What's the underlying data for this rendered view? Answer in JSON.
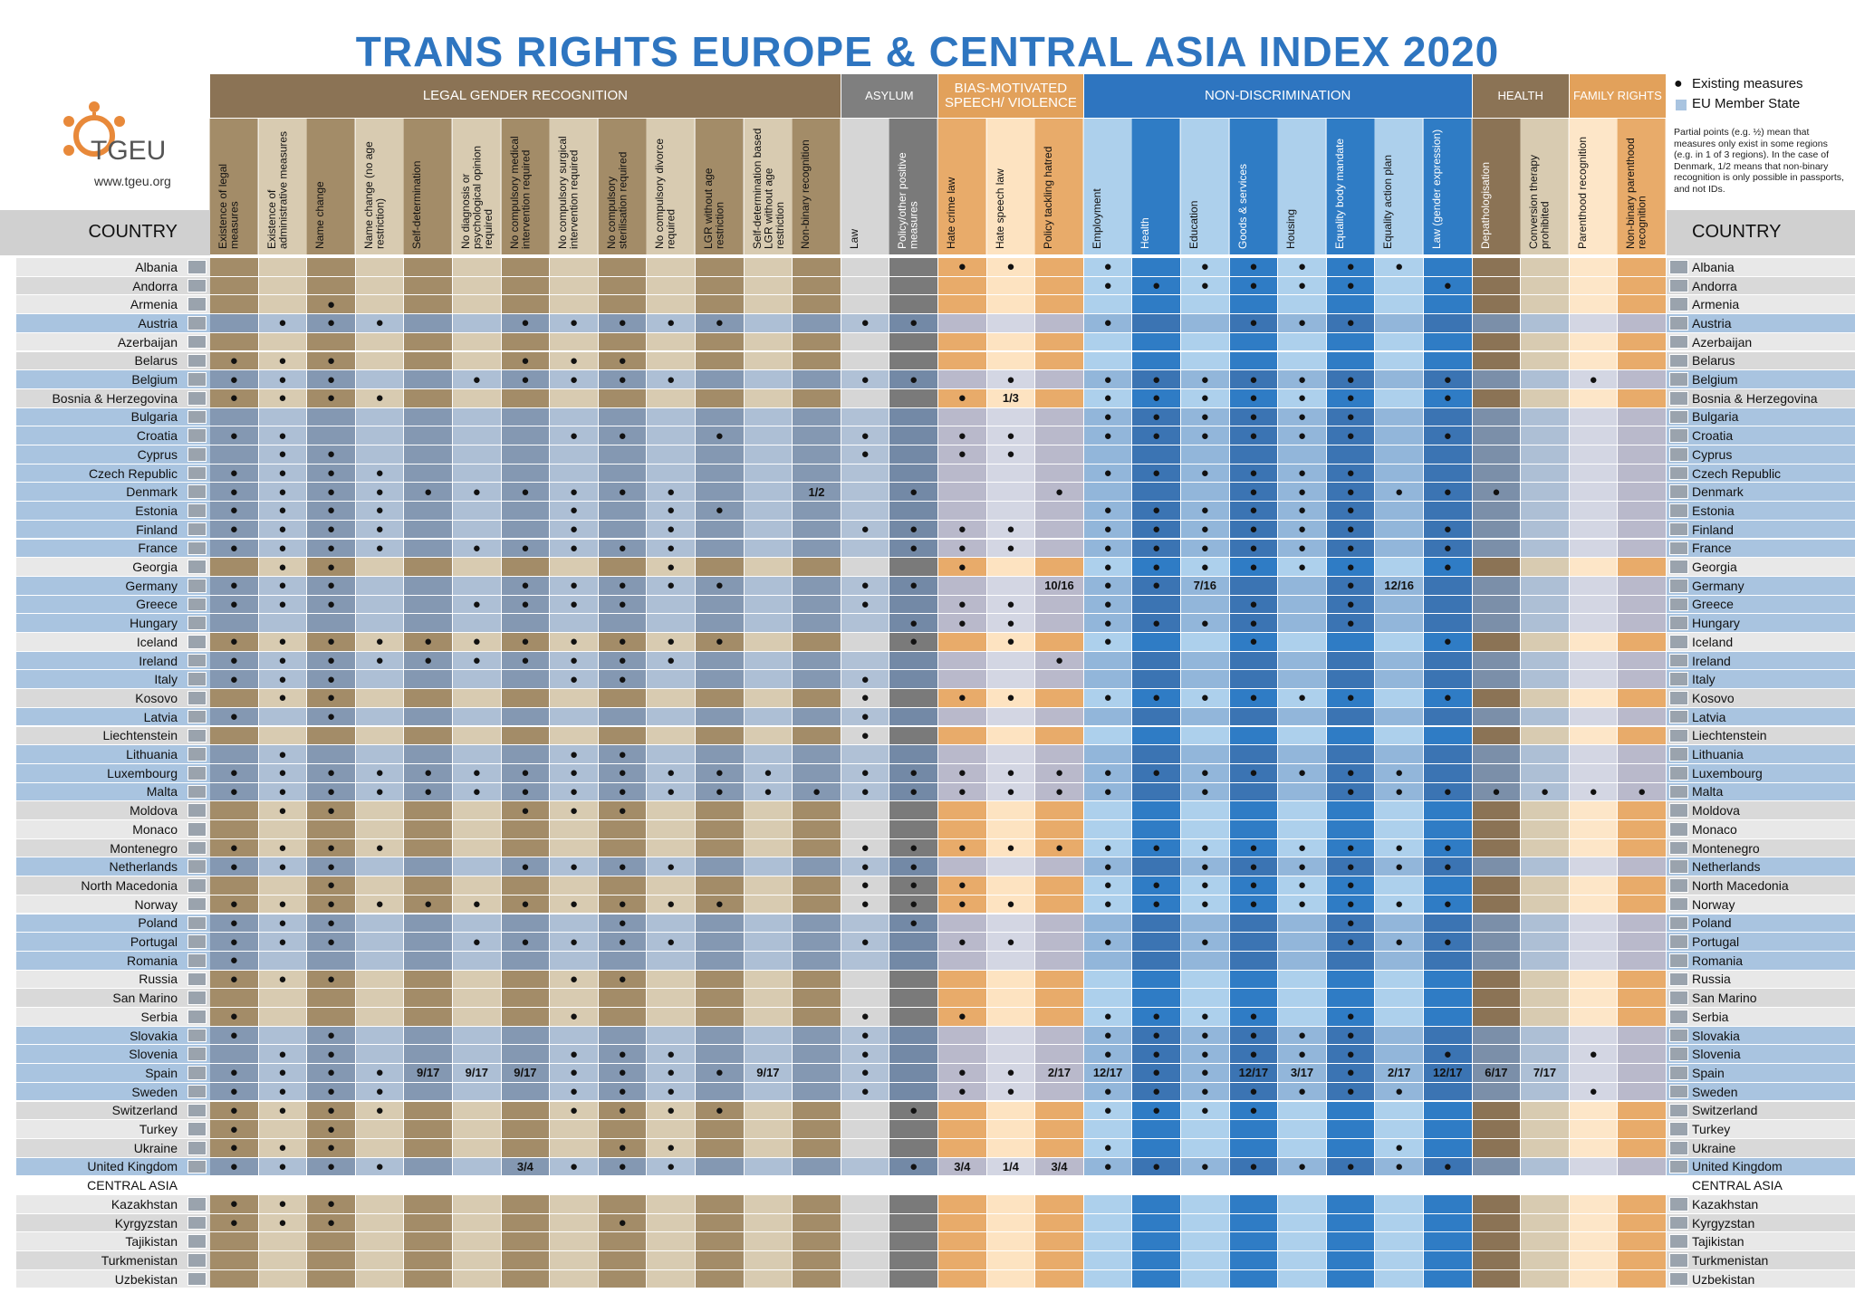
{
  "header": {
    "title": "TRANS RIGHTS EUROPE  & CENTRAL ASIA INDEX 2020",
    "logo": "TGEU",
    "url": "www.tgeu.org"
  },
  "legend": {
    "items": [
      {
        "symbol": "●",
        "label": "Existing measures"
      },
      {
        "color": "#a9c4e0",
        "label": "EU Member State"
      }
    ],
    "note": "Partial points (e.g. ½) mean that measures only exist in some regions (e.g. in 1 of 3 regions). In the case of Denmark, 1/2 means that non-binary recognition is only possible in passports, and not IDs."
  },
  "table": {
    "country_header": "COUNTRY",
    "groups": [
      {
        "label": "LEGAL GENDER RECOGNITION",
        "color": "#8b7355",
        "colors": [
          "#a38c68",
          "#d8cbb1"
        ],
        "eu_colors": [
          "#8498b2",
          "#adbfd5"
        ],
        "columns": [
          "Existence of legal measures",
          "Existence of administrative measures",
          "Name change",
          "Name change (no age restriction)",
          "Self-determination",
          "No diagnosis or psychological opinion required",
          "No compulsory medical intervention required",
          "No compulsory surgical intervention required",
          "No compulsory sterilisation required",
          "No compulsory divorce required",
          "LGR without age restriction",
          "Self-determination based LGR without age restriction",
          "Non-binary recognition"
        ]
      },
      {
        "label": "ASYLUM",
        "color": "#7f7f7f",
        "colors": [
          "#d6d6d6",
          "#7a7a7a"
        ],
        "eu_colors": [
          "#b0c1d6",
          "#7389a6"
        ],
        "columns": [
          "Law",
          "Policy/other positive measures"
        ]
      },
      {
        "label": "BIAS-MOTIVATED SPEECH/ VIOLENCE",
        "color": "#e2a15b",
        "colors": [
          "#e8ab6a",
          "#fde3c1"
        ],
        "eu_colors": [
          "#b9b9cb",
          "#d3d6e3"
        ],
        "columns": [
          "Hate crime law",
          "Hate speech law",
          "Policy tackling hatred"
        ]
      },
      {
        "label": "NON-DISCRIMINATION",
        "color": "#2e75c0",
        "colors": [
          "#add0ec",
          "#2f7cc5"
        ],
        "eu_colors": [
          "#92b6da",
          "#3b74b3"
        ],
        "columns": [
          "Employment",
          "Health",
          "Education",
          "Goods & services",
          "Housing",
          "Equality body mandate",
          "Equality action plan",
          "Law (gender expression)"
        ]
      },
      {
        "label": "HEALTH",
        "color": "#8b7355",
        "colors": [
          "#8b7355",
          "#d8cbb1"
        ],
        "eu_colors": [
          "#7b8fa9",
          "#adbfd5"
        ],
        "columns": [
          "Depathologisation",
          "Conversion therapy prohibited"
        ]
      },
      {
        "label": "FAMILY RIGHTS",
        "color": "#e2a15b",
        "colors": [
          "#fde6c8",
          "#e8ab6a"
        ],
        "eu_colors": [
          "#d3d6e3",
          "#b9b9cb"
        ],
        "columns": [
          "Parenthood recognition",
          "Non-binary parenthood recognition"
        ]
      }
    ],
    "rows": [
      {
        "country": "Albania",
        "eu": false,
        "cells": {
          "15": "●",
          "16": "●",
          "18": "●",
          "20": "●",
          "21": "●",
          "22": "●",
          "23": "●",
          "24": "●"
        }
      },
      {
        "country": "Andorra",
        "eu": false,
        "cells": {
          "18": "●",
          "19": "●",
          "20": "●",
          "21": "●",
          "22": "●",
          "23": "●",
          "25": "●"
        }
      },
      {
        "country": "Armenia",
        "eu": false,
        "cells": {
          "2": "●"
        }
      },
      {
        "country": "Austria",
        "eu": true,
        "cells": {
          "1": "●",
          "2": "●",
          "3": "●",
          "6": "●",
          "7": "●",
          "8": "●",
          "9": "●",
          "10": "●",
          "13": "●",
          "14": "●",
          "18": "●",
          "21": "●",
          "22": "●",
          "23": "●"
        }
      },
      {
        "country": "Azerbaijan",
        "eu": false,
        "cells": {}
      },
      {
        "country": "Belarus",
        "eu": false,
        "cells": {
          "0": "●",
          "1": "●",
          "2": "●",
          "6": "●",
          "7": "●",
          "8": "●"
        }
      },
      {
        "country": "Belgium",
        "eu": true,
        "cells": {
          "0": "●",
          "1": "●",
          "2": "●",
          "5": "●",
          "6": "●",
          "7": "●",
          "8": "●",
          "9": "●",
          "13": "●",
          "14": "●",
          "16": "●",
          "18": "●",
          "19": "●",
          "20": "●",
          "21": "●",
          "22": "●",
          "23": "●",
          "25": "●",
          "28": "●"
        }
      },
      {
        "country": "Bosnia & Herzegovina",
        "eu": false,
        "cells": {
          "0": "●",
          "1": "●",
          "2": "●",
          "3": "●",
          "15": "●",
          "16": "1/3",
          "18": "●",
          "19": "●",
          "20": "●",
          "21": "●",
          "22": "●",
          "23": "●",
          "25": "●"
        }
      },
      {
        "country": "Bulgaria",
        "eu": true,
        "cells": {
          "18": "●",
          "19": "●",
          "20": "●",
          "21": "●",
          "22": "●",
          "23": "●"
        }
      },
      {
        "country": "Croatia",
        "eu": true,
        "cells": {
          "0": "●",
          "1": "●",
          "7": "●",
          "8": "●",
          "10": "●",
          "13": "●",
          "15": "●",
          "16": "●",
          "18": "●",
          "19": "●",
          "20": "●",
          "21": "●",
          "22": "●",
          "23": "●",
          "25": "●"
        }
      },
      {
        "country": "Cyprus",
        "eu": true,
        "cells": {
          "1": "●",
          "2": "●",
          "13": "●",
          "15": "●",
          "16": "●"
        }
      },
      {
        "country": "Czech Republic",
        "eu": true,
        "cells": {
          "0": "●",
          "1": "●",
          "2": "●",
          "3": "●",
          "18": "●",
          "19": "●",
          "20": "●",
          "21": "●",
          "22": "●",
          "23": "●"
        }
      },
      {
        "country": "Denmark",
        "eu": true,
        "cells": {
          "0": "●",
          "1": "●",
          "2": "●",
          "3": "●",
          "4": "●",
          "5": "●",
          "6": "●",
          "7": "●",
          "8": "●",
          "9": "●",
          "12": "1/2",
          "14": "●",
          "17": "●",
          "21": "●",
          "22": "●",
          "23": "●",
          "24": "●",
          "25": "●",
          "26": "●"
        }
      },
      {
        "country": "Estonia",
        "eu": true,
        "cells": {
          "0": "●",
          "1": "●",
          "2": "●",
          "3": "●",
          "7": "●",
          "9": "●",
          "10": "●",
          "18": "●",
          "19": "●",
          "20": "●",
          "21": "●",
          "22": "●",
          "23": "●"
        }
      },
      {
        "country": "Finland",
        "eu": true,
        "cells": {
          "0": "●",
          "1": "●",
          "2": "●",
          "3": "●",
          "7": "●",
          "9": "●",
          "13": "●",
          "14": "●",
          "15": "●",
          "16": "●",
          "18": "●",
          "19": "●",
          "20": "●",
          "21": "●",
          "22": "●",
          "23": "●",
          "25": "●"
        }
      },
      {
        "country": "France",
        "eu": true,
        "cells": {
          "0": "●",
          "1": "●",
          "2": "●",
          "3": "●",
          "5": "●",
          "6": "●",
          "7": "●",
          "8": "●",
          "9": "●",
          "14": "●",
          "15": "●",
          "16": "●",
          "18": "●",
          "19": "●",
          "20": "●",
          "21": "●",
          "22": "●",
          "23": "●",
          "25": "●"
        }
      },
      {
        "country": "Georgia",
        "eu": false,
        "cells": {
          "1": "●",
          "2": "●",
          "9": "●",
          "15": "●",
          "18": "●",
          "19": "●",
          "20": "●",
          "21": "●",
          "22": "●",
          "23": "●",
          "25": "●"
        }
      },
      {
        "country": "Germany",
        "eu": true,
        "cells": {
          "0": "●",
          "1": "●",
          "2": "●",
          "6": "●",
          "7": "●",
          "8": "●",
          "9": "●",
          "10": "●",
          "13": "●",
          "14": "●",
          "17": "10/16",
          "18": "●",
          "19": "●",
          "20": "7/16",
          "23": "●",
          "24": "12/16"
        }
      },
      {
        "country": "Greece",
        "eu": true,
        "cells": {
          "0": "●",
          "1": "●",
          "2": "●",
          "5": "●",
          "6": "●",
          "7": "●",
          "8": "●",
          "13": "●",
          "15": "●",
          "16": "●",
          "18": "●",
          "21": "●",
          "23": "●"
        }
      },
      {
        "country": "Hungary",
        "eu": true,
        "cells": {
          "14": "●",
          "15": "●",
          "16": "●",
          "18": "●",
          "19": "●",
          "20": "●",
          "21": "●",
          "23": "●"
        }
      },
      {
        "country": "Iceland",
        "eu": false,
        "cells": {
          "0": "●",
          "1": "●",
          "2": "●",
          "3": "●",
          "4": "●",
          "5": "●",
          "6": "●",
          "7": "●",
          "8": "●",
          "9": "●",
          "10": "●",
          "14": "●",
          "16": "●",
          "18": "●",
          "21": "●",
          "25": "●"
        }
      },
      {
        "country": "Ireland",
        "eu": true,
        "cells": {
          "0": "●",
          "1": "●",
          "2": "●",
          "3": "●",
          "4": "●",
          "5": "●",
          "6": "●",
          "7": "●",
          "8": "●",
          "9": "●",
          "17": "●"
        }
      },
      {
        "country": "Italy",
        "eu": true,
        "cells": {
          "0": "●",
          "1": "●",
          "2": "●",
          "7": "●",
          "8": "●",
          "13": "●"
        }
      },
      {
        "country": "Kosovo",
        "eu": false,
        "cells": {
          "1": "●",
          "2": "●",
          "13": "●",
          "15": "●",
          "16": "●",
          "18": "●",
          "19": "●",
          "20": "●",
          "21": "●",
          "22": "●",
          "23": "●",
          "25": "●"
        }
      },
      {
        "country": "Latvia",
        "eu": true,
        "cells": {
          "0": "●",
          "2": "●",
          "13": "●"
        }
      },
      {
        "country": "Liechtenstein",
        "eu": false,
        "cells": {
          "13": "●"
        }
      },
      {
        "country": "Lithuania",
        "eu": true,
        "cells": {
          "1": "●",
          "7": "●",
          "8": "●"
        }
      },
      {
        "country": "Luxembourg",
        "eu": true,
        "cells": {
          "0": "●",
          "1": "●",
          "2": "●",
          "3": "●",
          "4": "●",
          "5": "●",
          "6": "●",
          "7": "●",
          "8": "●",
          "9": "●",
          "10": "●",
          "11": "●",
          "13": "●",
          "14": "●",
          "15": "●",
          "16": "●",
          "17": "●",
          "18": "●",
          "19": "●",
          "20": "●",
          "21": "●",
          "22": "●",
          "23": "●",
          "24": "●"
        }
      },
      {
        "country": "Malta",
        "eu": true,
        "cells": {
          "0": "●",
          "1": "●",
          "2": "●",
          "3": "●",
          "4": "●",
          "5": "●",
          "6": "●",
          "7": "●",
          "8": "●",
          "9": "●",
          "10": "●",
          "11": "●",
          "12": "●",
          "13": "●",
          "14": "●",
          "15": "●",
          "16": "●",
          "17": "●",
          "18": "●",
          "20": "●",
          "23": "●",
          "24": "●",
          "25": "●",
          "26": "●",
          "27": "●",
          "28": "●",
          "29": "●"
        }
      },
      {
        "country": "Moldova",
        "eu": false,
        "cells": {
          "1": "●",
          "2": "●",
          "6": "●",
          "7": "●",
          "8": "●"
        }
      },
      {
        "country": "Monaco",
        "eu": false,
        "cells": {}
      },
      {
        "country": "Montenegro",
        "eu": false,
        "cells": {
          "0": "●",
          "1": "●",
          "2": "●",
          "3": "●",
          "13": "●",
          "14": "●",
          "15": "●",
          "16": "●",
          "17": "●",
          "18": "●",
          "19": "●",
          "20": "●",
          "21": "●",
          "22": "●",
          "23": "●",
          "24": "●",
          "25": "●"
        }
      },
      {
        "country": "Netherlands",
        "eu": true,
        "cells": {
          "0": "●",
          "1": "●",
          "2": "●",
          "6": "●",
          "7": "●",
          "8": "●",
          "9": "●",
          "13": "●",
          "14": "●",
          "18": "●",
          "20": "●",
          "21": "●",
          "22": "●",
          "23": "●",
          "24": "●",
          "25": "●"
        }
      },
      {
        "country": "North Macedonia",
        "eu": false,
        "cells": {
          "2": "●",
          "13": "●",
          "14": "●",
          "15": "●",
          "18": "●",
          "19": "●",
          "20": "●",
          "21": "●",
          "22": "●",
          "23": "●"
        }
      },
      {
        "country": "Norway",
        "eu": false,
        "cells": {
          "0": "●",
          "1": "●",
          "2": "●",
          "3": "●",
          "4": "●",
          "5": "●",
          "6": "●",
          "7": "●",
          "8": "●",
          "9": "●",
          "10": "●",
          "13": "●",
          "14": "●",
          "15": "●",
          "16": "●",
          "18": "●",
          "19": "●",
          "20": "●",
          "21": "●",
          "22": "●",
          "23": "●",
          "24": "●",
          "25": "●"
        }
      },
      {
        "country": "Poland",
        "eu": true,
        "cells": {
          "0": "●",
          "1": "●",
          "2": "●",
          "8": "●",
          "14": "●",
          "23": "●"
        }
      },
      {
        "country": "Portugal",
        "eu": true,
        "cells": {
          "0": "●",
          "1": "●",
          "2": "●",
          "5": "●",
          "6": "●",
          "7": "●",
          "8": "●",
          "9": "●",
          "13": "●",
          "15": "●",
          "16": "●",
          "18": "●",
          "20": "●",
          "23": "●",
          "24": "●",
          "25": "●"
        }
      },
      {
        "country": "Romania",
        "eu": true,
        "cells": {
          "0": "●"
        }
      },
      {
        "country": "Russia",
        "eu": false,
        "cells": {
          "0": "●",
          "1": "●",
          "2": "●",
          "7": "●",
          "8": "●"
        }
      },
      {
        "country": "San Marino",
        "eu": false,
        "cells": {}
      },
      {
        "country": "Serbia",
        "eu": false,
        "cells": {
          "0": "●",
          "7": "●",
          "13": "●",
          "15": "●",
          "18": "●",
          "19": "●",
          "20": "●",
          "21": "●",
          "23": "●"
        }
      },
      {
        "country": "Slovakia",
        "eu": true,
        "cells": {
          "0": "●",
          "2": "●",
          "13": "●",
          "18": "●",
          "19": "●",
          "20": "●",
          "21": "●",
          "22": "●",
          "23": "●"
        }
      },
      {
        "country": "Slovenia",
        "eu": true,
        "cells": {
          "1": "●",
          "2": "●",
          "7": "●",
          "8": "●",
          "9": "●",
          "13": "●",
          "18": "●",
          "19": "●",
          "20": "●",
          "21": "●",
          "22": "●",
          "23": "●",
          "25": "●",
          "28": "●"
        }
      },
      {
        "country": "Spain",
        "eu": true,
        "cells": {
          "0": "●",
          "1": "●",
          "2": "●",
          "3": "●",
          "4": "9/17",
          "5": "9/17",
          "6": "9/17",
          "7": "●",
          "8": "●",
          "9": "●",
          "10": "●",
          "11": "9/17",
          "13": "●",
          "15": "●",
          "16": "●",
          "17": "2/17",
          "18": "12/17",
          "19": "●",
          "20": "●",
          "21": "12/17",
          "22": "3/17",
          "23": "●",
          "24": "2/17",
          "25": "12/17",
          "26": "6/17",
          "27": "7/17"
        }
      },
      {
        "country": "Sweden",
        "eu": true,
        "cells": {
          "0": "●",
          "1": "●",
          "2": "●",
          "3": "●",
          "7": "●",
          "8": "●",
          "9": "●",
          "13": "●",
          "15": "●",
          "16": "●",
          "18": "●",
          "19": "●",
          "20": "●",
          "21": "●",
          "22": "●",
          "23": "●",
          "24": "●",
          "28": "●"
        }
      },
      {
        "country": "Switzerland",
        "eu": false,
        "cells": {
          "0": "●",
          "1": "●",
          "2": "●",
          "3": "●",
          "7": "●",
          "8": "●",
          "9": "●",
          "10": "●",
          "14": "●",
          "18": "●",
          "19": "●",
          "20": "●",
          "21": "●"
        }
      },
      {
        "country": "Turkey",
        "eu": false,
        "cells": {
          "0": "●",
          "2": "●"
        }
      },
      {
        "country": "Ukraine",
        "eu": false,
        "cells": {
          "0": "●",
          "1": "●",
          "2": "●",
          "8": "●",
          "9": "●",
          "18": "●",
          "24": "●"
        }
      },
      {
        "country": "United Kingdom",
        "eu": true,
        "cells": {
          "0": "●",
          "1": "●",
          "2": "●",
          "3": "●",
          "6": "3/4",
          "7": "●",
          "8": "●",
          "9": "●",
          "14": "●",
          "15": "3/4",
          "16": "1/4",
          "17": "3/4",
          "18": "●",
          "19": "●",
          "20": "●",
          "21": "●",
          "22": "●",
          "23": "●",
          "24": "●",
          "25": "●"
        }
      }
    ],
    "central_asia": {
      "label": "CENTRAL ASIA",
      "rows": [
        {
          "country": "Kazakhstan",
          "eu": false,
          "cells": {
            "0": "●",
            "1": "●",
            "2": "●"
          }
        },
        {
          "country": "Kyrgyzstan",
          "eu": false,
          "cells": {
            "0": "●",
            "1": "●",
            "2": "●",
            "8": "●"
          }
        },
        {
          "country": "Tajikistan",
          "eu": false,
          "cells": {}
        },
        {
          "country": "Turkmenistan",
          "eu": false,
          "cells": {}
        },
        {
          "country": "Uzbekistan",
          "eu": false,
          "cells": {}
        }
      ]
    }
  }
}
